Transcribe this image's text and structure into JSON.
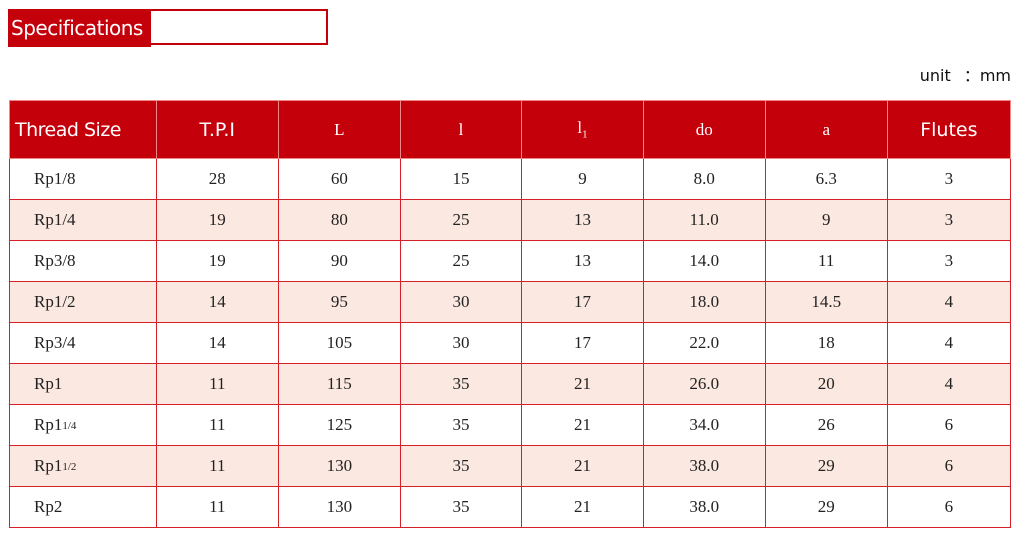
{
  "title": "Specifications",
  "unit": "unit  ：mm",
  "headers": [
    {
      "text": "Thread Size",
      "sub": ""
    },
    {
      "text": "T.P.I",
      "sub": ""
    },
    {
      "text": "L",
      "sub": ""
    },
    {
      "text": "l",
      "sub": ""
    },
    {
      "text": "l",
      "sub": "1"
    },
    {
      "text": "do",
      "sub": ""
    },
    {
      "text": "a",
      "sub": ""
    },
    {
      "text": "Flutes",
      "sub": ""
    }
  ],
  "rows": [
    {
      "size": "Rp1/8",
      "frac": "",
      "cells": [
        "28",
        "60",
        "15",
        "9",
        "8.0",
        "6.3",
        "3"
      ]
    },
    {
      "size": "Rp1/4",
      "frac": "",
      "cells": [
        "19",
        "80",
        "25",
        "13",
        "11.0",
        "9",
        "3"
      ]
    },
    {
      "size": "Rp3/8",
      "frac": "",
      "cells": [
        "19",
        "90",
        "25",
        "13",
        "14.0",
        "11",
        "3"
      ]
    },
    {
      "size": "Rp1/2",
      "frac": "",
      "cells": [
        "14",
        "95",
        "30",
        "17",
        "18.0",
        "14.5",
        "4"
      ]
    },
    {
      "size": "Rp3/4",
      "frac": "",
      "cells": [
        "14",
        "105",
        "30",
        "17",
        "22.0",
        "18",
        "4"
      ]
    },
    {
      "size": "Rp1",
      "frac": "",
      "cells": [
        "11",
        "115",
        "35",
        "21",
        "26.0",
        "20",
        "4"
      ]
    },
    {
      "size": "Rp1",
      "frac": "1/4",
      "cells": [
        "11",
        "125",
        "35",
        "21",
        "34.0",
        "26",
        "6"
      ]
    },
    {
      "size": "Rp1",
      "frac": "1/2",
      "cells": [
        "11",
        "130",
        "35",
        "21",
        "38.0",
        "29",
        "6"
      ]
    },
    {
      "size": "Rp2",
      "frac": "",
      "cells": [
        "11",
        "130",
        "35",
        "21",
        "38.0",
        "29",
        "6"
      ]
    }
  ],
  "colors": {
    "accent": "#c4000b",
    "alt_row": "#fbe8e0"
  }
}
